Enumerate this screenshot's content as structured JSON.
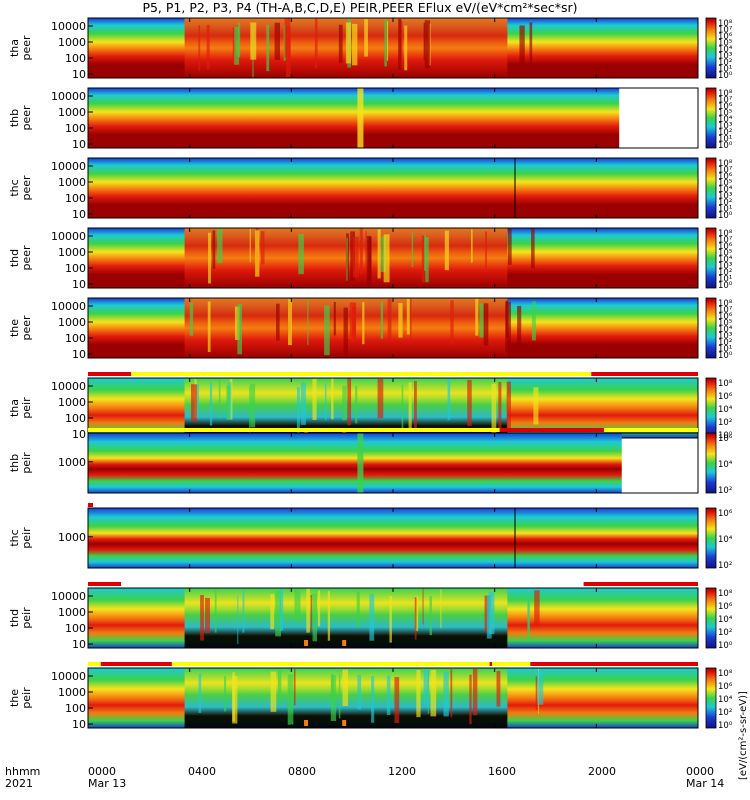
{
  "title": "P5, P1, P2, P3, P4 (TH-A,B,C,D,E) PEIR,PEER EFlux eV/(eV*cm²*sec*sr)",
  "colorbar_unit": "[eV/(cm²-s-sr-eV)]",
  "colors": {
    "dark_red": "#9a0000",
    "red": "#e11b0c",
    "orange": "#f47c10",
    "yellow": "#f5e41c",
    "green": "#3bd24a",
    "cyan": "#1ec9d6",
    "blue": "#1a3cd6",
    "navy": "#12127a",
    "black": "#000000",
    "flag_red": "#dd0000",
    "flag_yellow": "#ffff00"
  },
  "footer": {
    "row1": [
      "hhmm",
      "0000",
      "0400",
      "0800",
      "1200",
      "1600",
      "2000",
      "0000"
    ],
    "row2": [
      "2021",
      "Mar 13",
      "Mar 14"
    ]
  },
  "chart_data": {
    "type": "heatmap",
    "x_axis": {
      "ticks": [
        "0000",
        "0400",
        "0800",
        "1200",
        "1600",
        "2000",
        "0000"
      ],
      "range_hours": [
        0,
        24
      ],
      "dates": [
        "Mar 13",
        "Mar 14"
      ],
      "year": "2021"
    },
    "colorbar_ticks_full": [
      "10⁸",
      "10⁷",
      "10⁶",
      "10⁵",
      "10⁴",
      "10³",
      "10²",
      "10¹",
      "10⁰"
    ],
    "colorbar_ticks_sparse": [
      "10⁶",
      "10⁴",
      "10²"
    ],
    "colorbar_ticks_peir": [
      "10⁸",
      "10⁶",
      "10⁴",
      "10²",
      "10⁰"
    ],
    "panels": [
      {
        "probe": "tha",
        "species": "peer",
        "y_ticks": [
          "10000",
          "1000",
          "100",
          "10"
        ],
        "data_end_hour": 24
      },
      {
        "probe": "thb",
        "species": "peer",
        "y_ticks": [
          "10000",
          "1000",
          "100",
          "10"
        ],
        "data_end_hour": 20.9
      },
      {
        "probe": "thc",
        "species": "peer",
        "y_ticks": [
          "10000",
          "1000",
          "100",
          "10"
        ],
        "data_end_hour": 24
      },
      {
        "probe": "thd",
        "species": "peer",
        "y_ticks": [
          "10000",
          "1000",
          "100",
          "10"
        ],
        "data_end_hour": 24
      },
      {
        "probe": "the",
        "species": "peer",
        "y_ticks": [
          "10000",
          "1000",
          "100",
          "10"
        ],
        "data_end_hour": 24
      },
      {
        "probe": "tha",
        "species": "peir",
        "y_ticks": [
          "10000",
          "1000",
          "100",
          "10"
        ],
        "data_end_hour": 24
      },
      {
        "probe": "thb",
        "species": "peir",
        "y_ticks": [
          "1000"
        ],
        "data_end_hour": 21.0
      },
      {
        "probe": "thc",
        "species": "peir",
        "y_ticks": [
          "1000"
        ],
        "data_end_hour": 24
      },
      {
        "probe": "thd",
        "species": "peir",
        "y_ticks": [
          "10000",
          "1000",
          "100",
          "10"
        ],
        "data_end_hour": 24
      },
      {
        "probe": "the",
        "species": "peir",
        "y_ticks": [
          "10000",
          "1000",
          "100",
          "10"
        ],
        "data_end_hour": 24
      }
    ]
  }
}
